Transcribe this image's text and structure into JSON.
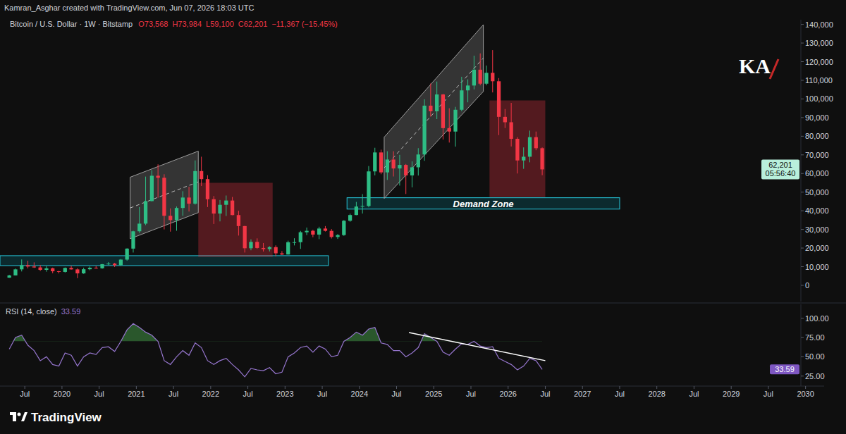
{
  "chart_data": [
    {
      "type": "candlestick",
      "title": "Bitcoin / U.S. Dollar · 1W · Bitstamp",
      "subtitle": "Kamran_Asghar created with TradingView.com, Jun 07, 2026 18:03 UTC",
      "ohlc_labels": [
        "O73,568",
        "H73,984",
        "L59,100",
        "C62,201",
        "−11,367 (−15.45%)"
      ],
      "last_price_label": "62,201",
      "countdown": "05:56:40",
      "grid": false,
      "x": [
        "2019-04",
        "2019-05",
        "2019-06",
        "2019-07",
        "2019-08",
        "2019-09",
        "2019-10",
        "2019-11",
        "2019-12",
        "2020-01",
        "2020-02",
        "2020-03",
        "2020-04",
        "2020-05",
        "2020-06",
        "2020-07",
        "2020-08",
        "2020-09",
        "2020-10",
        "2020-11",
        "2020-12",
        "2021-01",
        "2021-02",
        "2021-03",
        "2021-04",
        "2021-05",
        "2021-06",
        "2021-07",
        "2021-08",
        "2021-09",
        "2021-10",
        "2021-11",
        "2021-12",
        "2022-01",
        "2022-02",
        "2022-03",
        "2022-04",
        "2022-05",
        "2022-06",
        "2022-07",
        "2022-08",
        "2022-09",
        "2022-10",
        "2022-11",
        "2022-12",
        "2023-01",
        "2023-02",
        "2023-03",
        "2023-04",
        "2023-05",
        "2023-06",
        "2023-07",
        "2023-08",
        "2023-09",
        "2023-10",
        "2023-11",
        "2023-12",
        "2024-01",
        "2024-02",
        "2024-03",
        "2024-04",
        "2024-05",
        "2024-06",
        "2024-07",
        "2024-08",
        "2024-09",
        "2024-10",
        "2024-11",
        "2024-12",
        "2025-01",
        "2025-02",
        "2025-03",
        "2025-04",
        "2025-05",
        "2025-06",
        "2025-07",
        "2025-08",
        "2025-09",
        "2025-10",
        "2025-11",
        "2025-12",
        "2026-01",
        "2026-02",
        "2026-03",
        "2026-04",
        "2026-05",
        "2026-06"
      ],
      "open": [
        4100,
        5320,
        8560,
        10820,
        10080,
        9600,
        8300,
        9150,
        7550,
        7190,
        9350,
        8550,
        6420,
        8630,
        9450,
        9140,
        11340,
        11650,
        10780,
        13800,
        19700,
        28990,
        33100,
        45200,
        58800,
        57700,
        37300,
        35000,
        41500,
        47100,
        43800,
        61300,
        57000,
        46200,
        38500,
        43200,
        45500,
        37700,
        31800,
        19900,
        23300,
        20050,
        19430,
        20500,
        17170,
        16540,
        23130,
        23150,
        28480,
        29250,
        27220,
        30470,
        29230,
        25940,
        26960,
        34650,
        37720,
        42280,
        42580,
        61130,
        71300,
        60600,
        67500,
        62700,
        64600,
        58970,
        63330,
        70200,
        96400,
        93400,
        102400,
        84350,
        82500,
        94200,
        104600,
        107200,
        115700,
        108200,
        114000,
        109500,
        90400,
        87500,
        78600,
        67000,
        69000,
        79500,
        73568
      ],
      "high": [
        5600,
        9000,
        13880,
        13200,
        12330,
        10900,
        10350,
        9500,
        7750,
        9580,
        10500,
        9180,
        9480,
        10080,
        10400,
        11450,
        12480,
        12070,
        14100,
        19900,
        29300,
        41950,
        58350,
        61780,
        64900,
        59600,
        41300,
        42300,
        50500,
        52900,
        67000,
        69000,
        59100,
        47900,
        45800,
        48200,
        47400,
        40000,
        31900,
        24700,
        25200,
        22700,
        20990,
        21450,
        18400,
        23950,
        25250,
        29200,
        31000,
        29800,
        31450,
        31800,
        30200,
        27500,
        35000,
        38450,
        44750,
        48950,
        64000,
        73800,
        72800,
        71950,
        71950,
        70000,
        65100,
        66500,
        73600,
        99800,
        108300,
        109350,
        102750,
        95000,
        95750,
        111900,
        110500,
        123200,
        124450,
        117900,
        126200,
        111200,
        94600,
        97900,
        79500,
        74000,
        83000,
        82500,
        73984
      ],
      "low": [
        4050,
        5300,
        7450,
        9070,
        9320,
        7700,
        7300,
        6500,
        6420,
        6850,
        8450,
        3850,
        6150,
        8120,
        8900,
        8900,
        10850,
        9850,
        10400,
        13200,
        17600,
        28130,
        32300,
        45000,
        47000,
        30000,
        28800,
        29300,
        37300,
        39600,
        43300,
        53300,
        42000,
        32900,
        34300,
        37200,
        37600,
        26700,
        17600,
        18800,
        19600,
        18150,
        18200,
        15500,
        16250,
        16500,
        21400,
        19550,
        26950,
        25800,
        24800,
        28860,
        25100,
        24900,
        26550,
        34100,
        37650,
        38500,
        41880,
        59000,
        59600,
        56550,
        58400,
        53500,
        49000,
        52550,
        58900,
        66800,
        90500,
        89200,
        78200,
        76600,
        74400,
        93400,
        98200,
        105100,
        107300,
        107300,
        103500,
        80600,
        84400,
        74500,
        60000,
        62500,
        66000,
        72500,
        59100
      ],
      "close": [
        5320,
        8560,
        10820,
        10080,
        9600,
        8300,
        9150,
        7550,
        7190,
        9350,
        8550,
        6420,
        8630,
        9450,
        9140,
        11340,
        11650,
        10780,
        13800,
        19700,
        28990,
        33100,
        45200,
        58800,
        57700,
        37300,
        35000,
        41500,
        47100,
        43800,
        61300,
        57000,
        46200,
        38500,
        43200,
        45500,
        37700,
        31800,
        19900,
        23300,
        20050,
        19430,
        20500,
        17170,
        16540,
        23130,
        23150,
        28480,
        29250,
        27220,
        30470,
        29230,
        25940,
        26960,
        34650,
        37720,
        42280,
        42580,
        61130,
        71300,
        60600,
        67500,
        62700,
        64600,
        58970,
        63330,
        70200,
        96400,
        93400,
        102400,
        84350,
        82500,
        94200,
        104600,
        107200,
        115700,
        108200,
        114000,
        109500,
        90400,
        87500,
        78600,
        67000,
        69000,
        79500,
        73568,
        62201
      ],
      "xlim": [
        "2019-03",
        "2030-04"
      ],
      "xticks": [
        {
          "value": "2019-07",
          "label": "Jul"
        },
        {
          "value": "2020-01",
          "label": "2020"
        },
        {
          "value": "2020-07",
          "label": "Jul"
        },
        {
          "value": "2021-01",
          "label": "2021"
        },
        {
          "value": "2021-07",
          "label": "Jul"
        },
        {
          "value": "2022-01",
          "label": "2022"
        },
        {
          "value": "2022-07",
          "label": "Jul"
        },
        {
          "value": "2023-01",
          "label": "2023"
        },
        {
          "value": "2023-07",
          "label": "Jul"
        },
        {
          "value": "2024-01",
          "label": "2024"
        },
        {
          "value": "2024-07",
          "label": "Jul"
        },
        {
          "value": "2025-01",
          "label": "2025"
        },
        {
          "value": "2025-07",
          "label": "Jul"
        },
        {
          "value": "2026-01",
          "label": "2026"
        },
        {
          "value": "2026-07",
          "label": "Jul"
        },
        {
          "value": "2027-01",
          "label": "2027"
        },
        {
          "value": "2027-07",
          "label": "Jul"
        },
        {
          "value": "2028-01",
          "label": "2028"
        },
        {
          "value": "2028-07",
          "label": "Jul"
        },
        {
          "value": "2029-01",
          "label": "2029"
        },
        {
          "value": "2029-07",
          "label": "Jul"
        },
        {
          "value": "2030-01",
          "label": "2030"
        }
      ],
      "ylim": [
        -8700,
        142500
      ],
      "yticks": [
        0,
        {
          "value": 10000,
          "label": "10,000"
        },
        {
          "value": 20000,
          "label": "20,000"
        },
        {
          "value": 30000,
          "label": "30,000"
        },
        {
          "value": 40000,
          "label": "40,000"
        },
        {
          "value": 50000,
          "label": "50,000"
        },
        {
          "value": 60000,
          "label": "60,000"
        },
        {
          "value": 70000,
          "label": "70,000"
        },
        {
          "value": 80000,
          "label": "80,000"
        },
        {
          "value": 90000,
          "label": "90,000"
        },
        {
          "value": 100000,
          "label": "100,000"
        },
        {
          "value": 110000,
          "label": "110,000"
        },
        {
          "value": 120000,
          "label": "120,000"
        },
        {
          "value": 130000,
          "label": "130,000"
        },
        {
          "value": 140000,
          "label": "140,000"
        }
      ],
      "zones": [
        {
          "x": [
            "2019-03",
            "2023-08"
          ],
          "y": [
            10600,
            15900
          ]
        },
        {
          "label": "Demand Zone",
          "x": [
            "2023-11",
            "2027-07"
          ],
          "y": [
            40900,
            47000
          ]
        }
      ],
      "boxes": [
        {
          "x": [
            "2021-11",
            "2022-11"
          ],
          "y": [
            15200,
            55000
          ]
        },
        {
          "x": [
            "2025-10",
            "2026-07"
          ],
          "y": [
            47300,
            99200
          ]
        }
      ],
      "channels": [
        {
          "upper": {
            "x": [
              "2020-12",
              "2021-11"
            ],
            "y": [
              58000,
              72000
            ]
          },
          "lower": {
            "x": [
              "2020-12",
              "2021-11"
            ],
            "y": [
              25000,
              39000
            ]
          }
        },
        {
          "upper": {
            "x": [
              "2024-05",
              "2025-09"
            ],
            "y": [
              79500,
              139800
            ]
          },
          "lower": {
            "x": [
              "2024-05",
              "2025-09"
            ],
            "y": [
              46600,
              104000
            ]
          }
        }
      ]
    },
    {
      "type": "line",
      "title": "RSI (14, close)",
      "color": "#9575cd",
      "x": [
        "2019-04",
        "2019-05",
        "2019-06",
        "2019-07",
        "2019-08",
        "2019-09",
        "2019-10",
        "2019-11",
        "2019-12",
        "2020-01",
        "2020-02",
        "2020-03",
        "2020-04",
        "2020-05",
        "2020-06",
        "2020-07",
        "2020-08",
        "2020-09",
        "2020-10",
        "2020-11",
        "2020-12",
        "2021-01",
        "2021-02",
        "2021-03",
        "2021-04",
        "2021-05",
        "2021-06",
        "2021-07",
        "2021-08",
        "2021-09",
        "2021-10",
        "2021-11",
        "2021-12",
        "2022-01",
        "2022-02",
        "2022-03",
        "2022-04",
        "2022-05",
        "2022-06",
        "2022-07",
        "2022-08",
        "2022-09",
        "2022-10",
        "2022-11",
        "2022-12",
        "2023-01",
        "2023-02",
        "2023-03",
        "2023-04",
        "2023-05",
        "2023-06",
        "2023-07",
        "2023-08",
        "2023-09",
        "2023-10",
        "2023-11",
        "2023-12",
        "2024-01",
        "2024-02",
        "2024-03",
        "2024-04",
        "2024-05",
        "2024-06",
        "2024-07",
        "2024-08",
        "2024-09",
        "2024-10",
        "2024-11",
        "2024-12",
        "2025-01",
        "2025-02",
        "2025-03",
        "2025-04",
        "2025-05",
        "2025-06",
        "2025-07",
        "2025-08",
        "2025-09",
        "2025-10",
        "2025-11",
        "2025-12",
        "2026-01",
        "2026-02",
        "2026-03",
        "2026-04",
        "2026-05",
        "2026-06"
      ],
      "values": [
        60,
        75,
        78,
        65,
        58,
        45,
        50,
        40,
        38,
        55,
        52,
        38,
        50,
        55,
        53,
        62,
        63,
        57,
        70,
        85,
        93,
        88,
        82,
        78,
        70,
        45,
        40,
        50,
        58,
        52,
        68,
        62,
        45,
        40,
        45,
        48,
        40,
        33,
        24,
        35,
        33,
        32,
        36,
        28,
        30,
        50,
        55,
        62,
        64,
        56,
        64,
        60,
        50,
        52,
        70,
        75,
        82,
        78,
        86,
        88,
        68,
        66,
        58,
        58,
        50,
        55,
        62,
        80,
        75,
        70,
        56,
        52,
        60,
        67,
        66,
        70,
        64,
        62,
        63,
        48,
        44,
        40,
        33,
        38,
        48,
        45,
        33.59
      ],
      "overbought": 70,
      "trendline": {
        "x": [
          "2024-09",
          "2026-07"
        ],
        "y": [
          81.5,
          45
        ]
      },
      "xlim": [
        "2019-03",
        "2030-04"
      ],
      "ylim": [
        12,
        118
      ],
      "yticks": [
        {
          "value": 25,
          "label": "25.00"
        },
        {
          "value": 50,
          "label": "50.00"
        },
        {
          "value": 75,
          "label": "75.00"
        },
        {
          "value": 100,
          "label": "100.00"
        }
      ]
    }
  ],
  "logo": "KA",
  "footer": "TradingView"
}
